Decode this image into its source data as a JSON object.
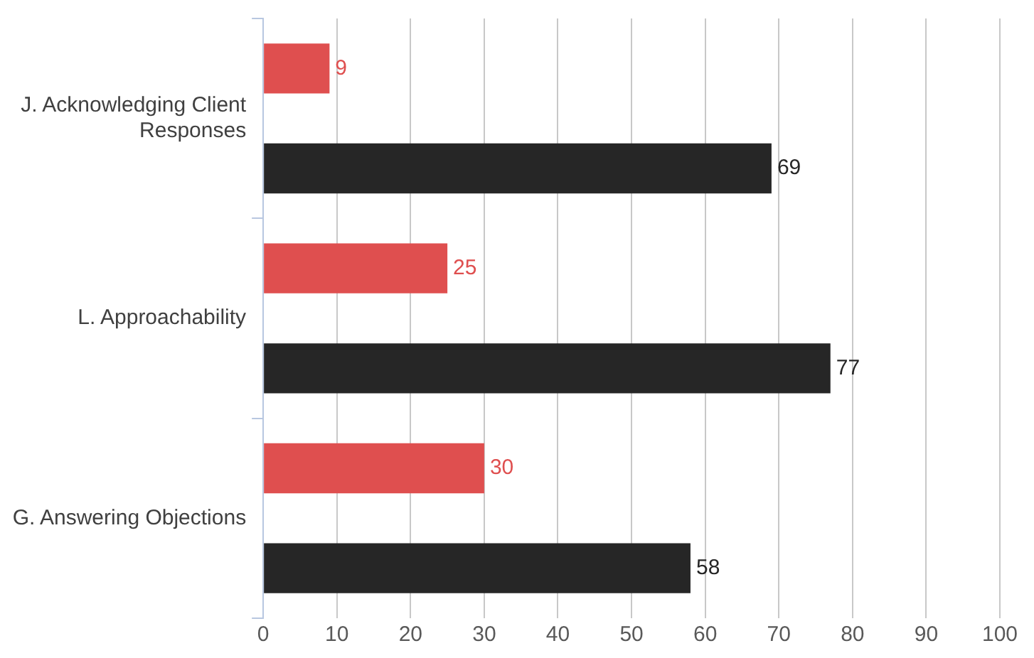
{
  "chart_data": {
    "type": "bar",
    "orientation": "horizontal",
    "categories": [
      "J. Acknowledging Client Responses",
      "L. Approachability",
      "G. Answering Objections"
    ],
    "series": [
      {
        "color": "#df4f4f",
        "values": [
          9,
          25,
          30
        ]
      },
      {
        "color": "#262626",
        "values": [
          69,
          77,
          58
        ]
      }
    ],
    "xlim": [
      0,
      100
    ],
    "xticks": [
      0,
      10,
      20,
      30,
      40,
      50,
      60,
      70,
      80,
      90,
      100
    ],
    "grid": "x",
    "data_labels": true,
    "legend": false
  }
}
